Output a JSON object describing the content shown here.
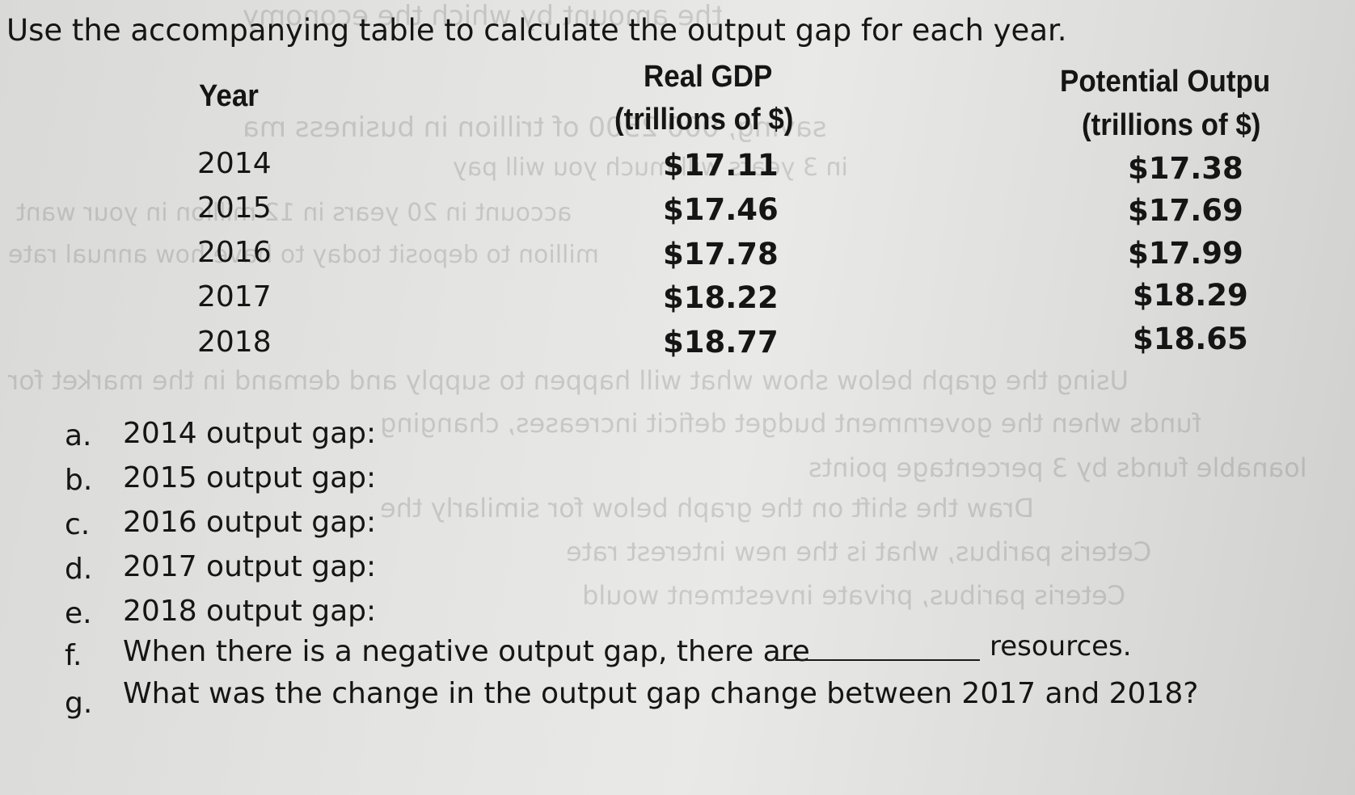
{
  "instruction": "Use the accompanying table to calculate the output gap for each year.",
  "table": {
    "headers": {
      "year": "Year",
      "real_gdp_line1": "Real GDP",
      "real_gdp_line2": "(trillions of $)",
      "potential_line1": "Potential Outpu",
      "potential_line2": "(trillions of $)"
    },
    "rows": [
      {
        "year": "2014",
        "real_gdp": "$17.11",
        "potential": "$17.38"
      },
      {
        "year": "2015",
        "real_gdp": "$17.46",
        "potential": "$17.69"
      },
      {
        "year": "2016",
        "real_gdp": "$17.78",
        "potential": "$17.99"
      },
      {
        "year": "2017",
        "real_gdp": "$18.22",
        "potential": "$18.29"
      },
      {
        "year": "2018",
        "real_gdp": "$18.77",
        "potential": "$18.65"
      }
    ]
  },
  "questions": [
    {
      "letter": "a.",
      "text": "2014 output gap:"
    },
    {
      "letter": "b.",
      "text": "2015 output gap:"
    },
    {
      "letter": "c.",
      "text": "2016 output gap:"
    },
    {
      "letter": "d.",
      "text": "2017 output gap:"
    },
    {
      "letter": "e.",
      "text": "2018 output gap:"
    },
    {
      "letter": "f.",
      "text": "When there is a negative output gap, there are",
      "suffix": "resources."
    },
    {
      "letter": "g.",
      "text": "What was the change in the output gap change between 2017 and 2018?"
    }
  ]
}
